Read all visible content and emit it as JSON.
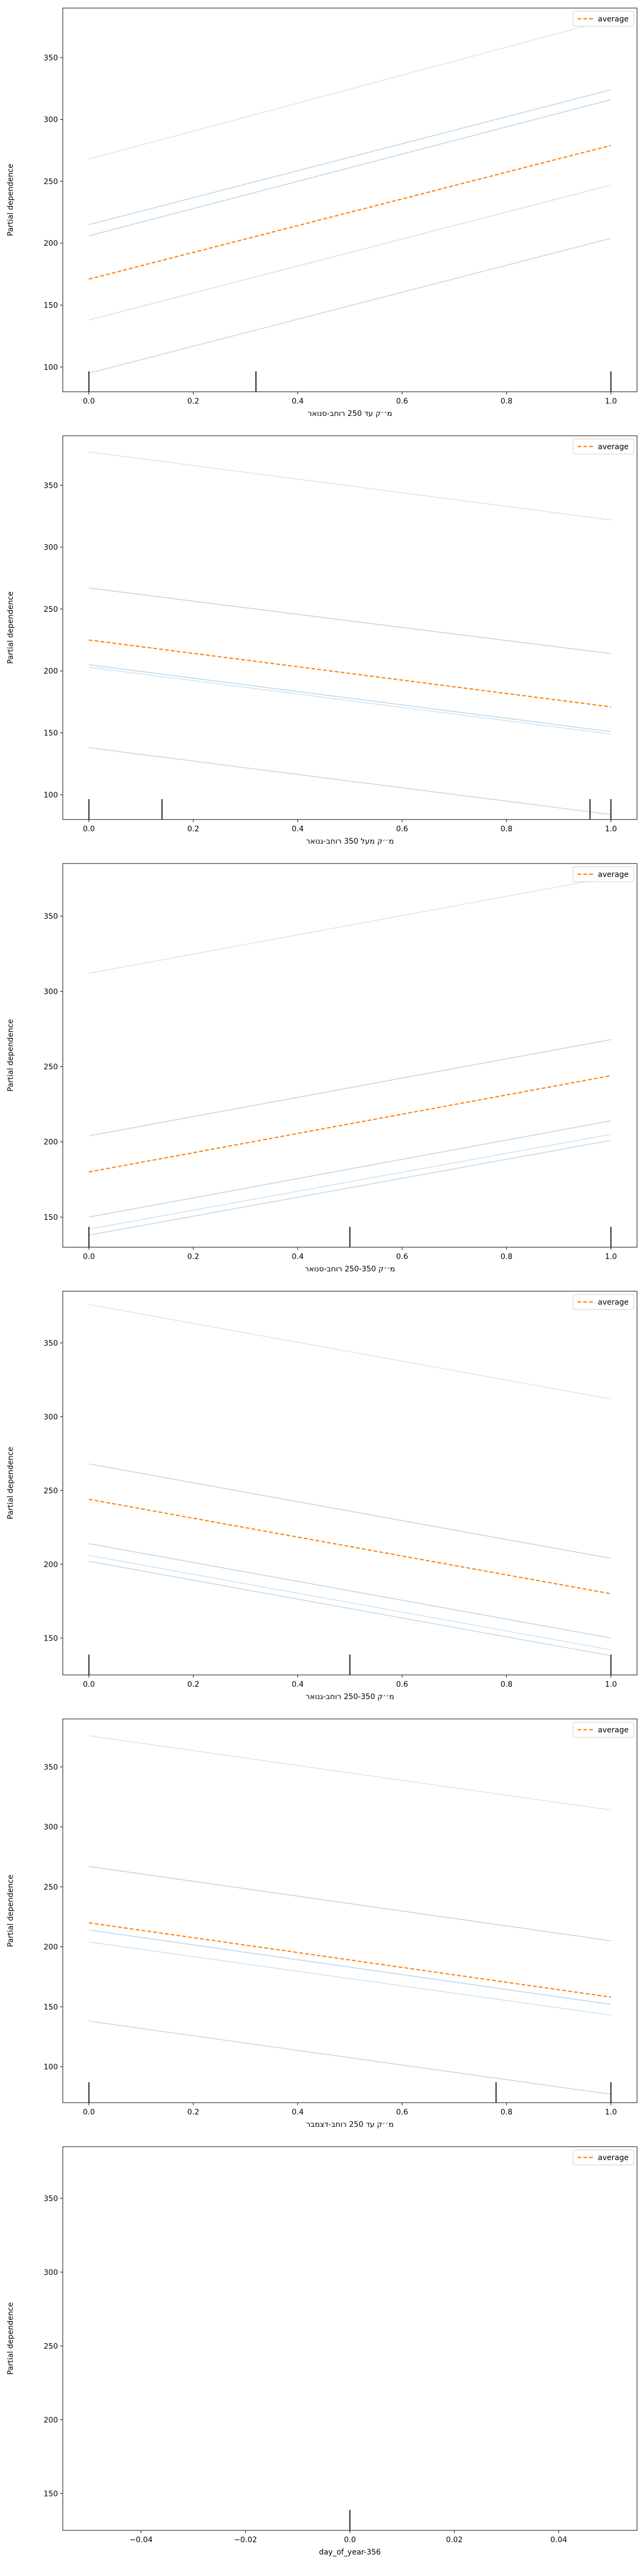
{
  "figure": {
    "legend_label": "average",
    "ylabel": "Partial dependence"
  },
  "chart_data": [
    {
      "type": "line",
      "xlabel": "מ׳׳ק עד 250 רוחב-סנואר",
      "ylabel": "Partial dependence",
      "xlim": [
        -0.05,
        1.05
      ],
      "ylim": [
        80,
        390
      ],
      "xticks": [
        0.0,
        0.2,
        0.4,
        0.6,
        0.8,
        1.0
      ],
      "yticks": [
        100,
        150,
        200,
        250,
        300,
        350
      ],
      "x": [
        0.0,
        1.0
      ],
      "ice_lines": [
        [
          95,
          204
        ],
        [
          138,
          247
        ],
        [
          206,
          316
        ],
        [
          215,
          324
        ],
        [
          268,
          381
        ]
      ],
      "average": [
        171,
        279
      ],
      "rug": [
        0.0,
        0.32,
        1.0
      ],
      "legend": "top-right",
      "grid": false
    },
    {
      "type": "line",
      "xlabel": "מ׳׳ק מעל 350 רוחב-גנואר",
      "ylabel": "Partial dependence",
      "xlim": [
        -0.05,
        1.05
      ],
      "ylim": [
        80,
        390
      ],
      "xticks": [
        0.0,
        0.2,
        0.4,
        0.6,
        0.8,
        1.0
      ],
      "yticks": [
        100,
        150,
        200,
        250,
        300,
        350
      ],
      "x": [
        0.0,
        1.0
      ],
      "ice_lines": [
        [
          138,
          84
        ],
        [
          203,
          149
        ],
        [
          205,
          151
        ],
        [
          267,
          214
        ],
        [
          377,
          322
        ]
      ],
      "average": [
        225,
        171
      ],
      "rug": [
        0.0,
        0.14,
        0.96,
        1.0
      ],
      "legend": "top-right",
      "grid": false
    },
    {
      "type": "line",
      "xlabel": "מ׳׳ק 250-350 רוחב-סנואר",
      "ylabel": "Partial dependence",
      "xlim": [
        -0.05,
        1.05
      ],
      "ylim": [
        130,
        385
      ],
      "xticks": [
        0.0,
        0.2,
        0.4,
        0.6,
        0.8,
        1.0
      ],
      "yticks": [
        150,
        200,
        250,
        300,
        350
      ],
      "x": [
        0.0,
        1.0
      ],
      "ice_lines": [
        [
          138,
          201
        ],
        [
          142,
          205
        ],
        [
          150,
          214
        ],
        [
          204,
          268
        ],
        [
          312,
          376
        ]
      ],
      "average": [
        180,
        244
      ],
      "rug": [
        0.0,
        0.5,
        1.0
      ],
      "legend": "top-right",
      "grid": false
    },
    {
      "type": "line",
      "xlabel": "מ׳׳ק 250-350 רוחב-גנואר",
      "ylabel": "Partial dependence",
      "xlim": [
        -0.05,
        1.05
      ],
      "ylim": [
        125,
        385
      ],
      "xticks": [
        0.0,
        0.2,
        0.4,
        0.6,
        0.8,
        1.0
      ],
      "yticks": [
        150,
        200,
        250,
        300,
        350
      ],
      "x": [
        0.0,
        1.0
      ],
      "ice_lines": [
        [
          202,
          138
        ],
        [
          206,
          142
        ],
        [
          214,
          150
        ],
        [
          268,
          204
        ],
        [
          376,
          312
        ]
      ],
      "average": [
        244,
        180
      ],
      "rug": [
        0.0,
        0.5,
        1.0
      ],
      "legend": "top-right",
      "grid": false
    },
    {
      "type": "line",
      "xlabel": "מ׳׳ק עד 250 רוחב-דצמבר",
      "ylabel": "Partial dependence",
      "xlim": [
        -0.05,
        1.05
      ],
      "ylim": [
        70,
        390
      ],
      "xticks": [
        0.0,
        0.2,
        0.4,
        0.6,
        0.8,
        1.0
      ],
      "yticks": [
        100,
        150,
        200,
        250,
        300,
        350
      ],
      "x": [
        0.0,
        1.0
      ],
      "ice_lines": [
        [
          138,
          77
        ],
        [
          204,
          143
        ],
        [
          214,
          152
        ],
        [
          267,
          205
        ],
        [
          376,
          314
        ]
      ],
      "average": [
        220,
        158
      ],
      "rug": [
        0.0,
        0.78,
        1.0
      ],
      "legend": "top-right",
      "grid": false
    },
    {
      "type": "line",
      "xlabel": "day_of_year-356",
      "ylabel": "Partial dependence",
      "xlim": [
        -0.055,
        0.055
      ],
      "ylim": [
        125,
        385
      ],
      "xticks": [
        -0.04,
        -0.02,
        0.0,
        0.02,
        0.04
      ],
      "yticks": [
        150,
        200,
        250,
        300,
        350
      ],
      "x": [],
      "ice_lines": [],
      "average": [],
      "rug": [
        0.0
      ],
      "legend": "top-right",
      "grid": false
    }
  ]
}
